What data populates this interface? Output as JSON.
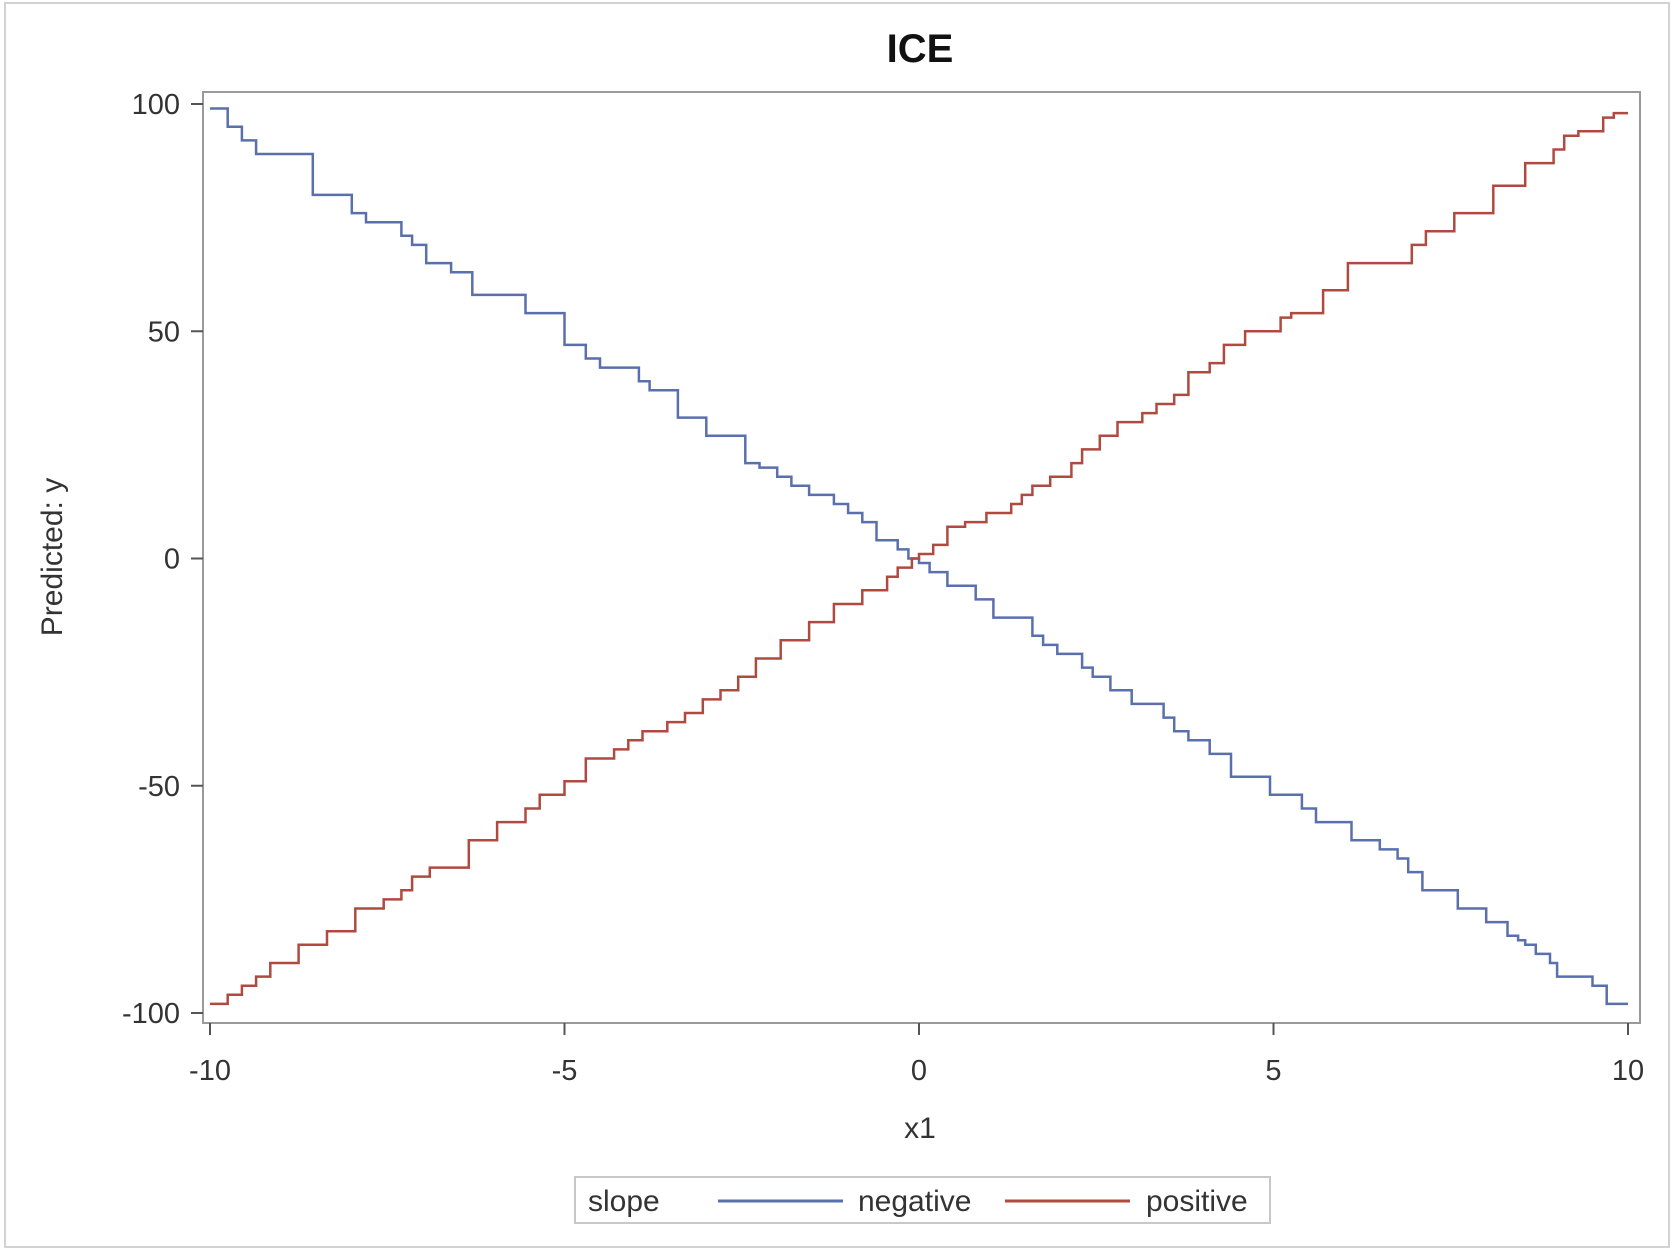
{
  "chart_data": {
    "type": "line",
    "title": "ICE",
    "xlabel": "x1",
    "ylabel": "Predicted: y",
    "xlim": [
      -10,
      10
    ],
    "ylim": [
      -100,
      100
    ],
    "xticks": [
      "-10",
      "-5",
      "0",
      "5",
      "10"
    ],
    "yticks": [
      "-100",
      "-50",
      "0",
      "50",
      "100"
    ],
    "grid": false,
    "legend": {
      "title": "slope",
      "placement": "bottom"
    },
    "series": [
      {
        "name": "negative",
        "color": "#5a6fae",
        "x": [
          -9.9,
          -9.75,
          -9.55,
          -9.35,
          -9.15,
          -8.55,
          -8.0,
          -7.8,
          -7.6,
          -7.3,
          -7.15,
          -6.95,
          -6.6,
          -6.3,
          -6.0,
          -5.55,
          -5.0,
          -4.7,
          -4.5,
          -4.25,
          -3.95,
          -3.8,
          -3.4,
          -3.0,
          -2.45,
          -2.25,
          -2.0,
          -1.8,
          -1.55,
          -1.2,
          -1.0,
          -0.8,
          -0.6,
          -0.3,
          -0.15,
          0.0,
          0.15,
          0.4,
          0.8,
          1.05,
          1.6,
          1.75,
          1.95,
          2.3,
          2.45,
          2.7,
          3.0,
          3.45,
          3.6,
          3.8,
          4.1,
          4.4,
          4.95,
          5.4,
          5.6,
          6.1,
          6.5,
          6.75,
          6.9,
          7.1,
          7.6,
          8.0,
          8.3,
          8.45,
          8.55,
          8.7,
          8.9,
          9.0,
          9.5,
          9.7,
          10.0
        ],
        "values": [
          99,
          95,
          92,
          89,
          89,
          80,
          76,
          74,
          74,
          71,
          69,
          65,
          63,
          58,
          58,
          54,
          47,
          44,
          42,
          42,
          39,
          37,
          31,
          27,
          21,
          20,
          18,
          16,
          14,
          12,
          10,
          8,
          4,
          2,
          0,
          -1,
          -3,
          -6,
          -9,
          -13,
          -17,
          -19,
          -21,
          -24,
          -26,
          -29,
          -32,
          -35,
          -38,
          -40,
          -43,
          -48,
          -52,
          -55,
          -58,
          -62,
          -64,
          -66,
          -69,
          -73,
          -77,
          -80,
          -83,
          -84,
          -85,
          -87,
          -89,
          -92,
          -94,
          -98,
          -98
        ]
      },
      {
        "name": "positive",
        "color": "#b04a40",
        "x": [
          -9.9,
          -9.75,
          -9.55,
          -9.35,
          -9.15,
          -8.75,
          -8.35,
          -7.95,
          -7.55,
          -7.3,
          -7.15,
          -6.9,
          -6.35,
          -5.95,
          -5.55,
          -5.35,
          -5.0,
          -4.7,
          -4.3,
          -4.1,
          -3.9,
          -3.55,
          -3.3,
          -3.05,
          -2.8,
          -2.55,
          -2.3,
          -1.95,
          -1.55,
          -1.2,
          -0.8,
          -0.45,
          -0.3,
          -0.1,
          0.0,
          0.2,
          0.4,
          0.65,
          0.95,
          1.3,
          1.45,
          1.6,
          1.85,
          2.15,
          2.3,
          2.55,
          2.8,
          3.15,
          3.35,
          3.6,
          3.8,
          4.1,
          4.3,
          4.6,
          5.1,
          5.25,
          5.7,
          6.05,
          6.45,
          6.95,
          7.15,
          7.55,
          8.1,
          8.55,
          8.95,
          9.1,
          9.3,
          9.65,
          9.8,
          10.0
        ],
        "values": [
          -98,
          -96,
          -94,
          -92,
          -89,
          -85,
          -82,
          -77,
          -75,
          -73,
          -70,
          -68,
          -62,
          -58,
          -55,
          -52,
          -49,
          -44,
          -42,
          -40,
          -38,
          -36,
          -34,
          -31,
          -29,
          -26,
          -22,
          -18,
          -14,
          -10,
          -7,
          -4,
          -2,
          0,
          1,
          3,
          7,
          8,
          10,
          12,
          14,
          16,
          18,
          21,
          24,
          27,
          30,
          32,
          34,
          36,
          41,
          43,
          47,
          50,
          53,
          54,
          59,
          65,
          65,
          69,
          72,
          76,
          82,
          87,
          90,
          93,
          94,
          97,
          98,
          98
        ]
      }
    ]
  }
}
